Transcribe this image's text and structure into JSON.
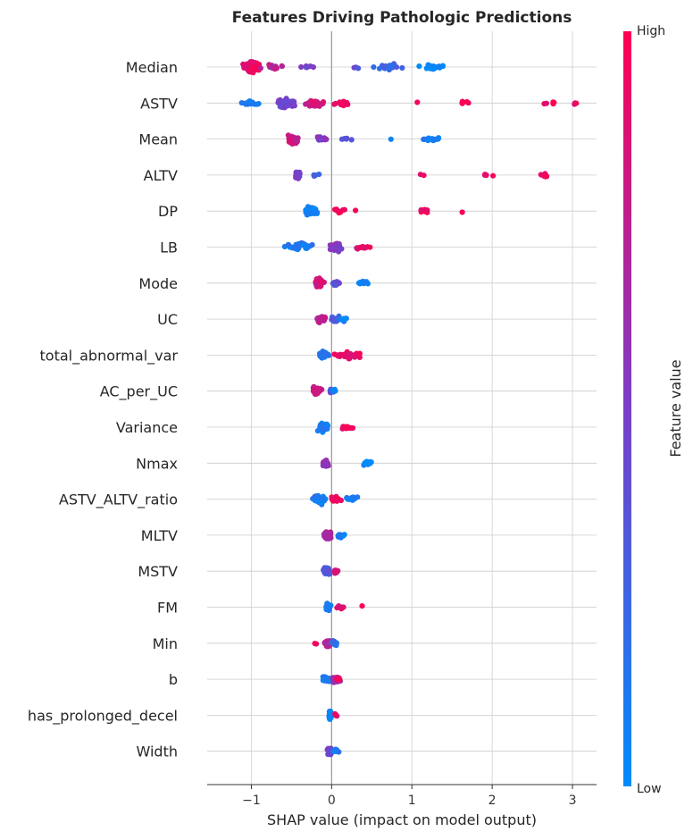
{
  "chart_data": {
    "type": "scatter",
    "subtype": "shap-beeswarm",
    "title": "Features Driving Pathologic Predictions",
    "xlabel": "SHAP value (impact on model output)",
    "xlim": [
      -1.55,
      3.3
    ],
    "xticks": [
      -1,
      0,
      1,
      2,
      3
    ],
    "colorbar": {
      "label": "Feature value",
      "high": "High",
      "low": "Low",
      "low_color": "#008bfb",
      "mid_color": "#7a3ec9",
      "high_color": "#ff0052"
    },
    "features": [
      {
        "name": "Median",
        "clusters": [
          {
            "c": -1.0,
            "w": 0.16,
            "n": 70,
            "v": 0.9
          },
          {
            "c": -0.7,
            "w": 0.2,
            "n": 18,
            "v": 0.72
          },
          {
            "c": -0.3,
            "w": 0.12,
            "n": 8,
            "v": 0.5
          },
          {
            "c": 0.7,
            "w": 0.25,
            "n": 25,
            "v": 0.25
          },
          {
            "c": 1.3,
            "w": 0.25,
            "n": 22,
            "v": 0.05
          },
          {
            "c": 0.3,
            "w": 0.1,
            "n": 3,
            "v": 0.35
          }
        ]
      },
      {
        "name": "ASTV",
        "clusters": [
          {
            "c": -1.0,
            "w": 0.3,
            "n": 14,
            "v": 0.1
          },
          {
            "c": -0.55,
            "w": 0.2,
            "n": 45,
            "v": 0.45
          },
          {
            "c": -0.2,
            "w": 0.2,
            "n": 30,
            "v": 0.8
          },
          {
            "c": 0.15,
            "w": 0.2,
            "n": 14,
            "v": 0.95
          },
          {
            "c": 1.65,
            "w": 0.1,
            "n": 5,
            "v": 0.95
          },
          {
            "c": 2.7,
            "w": 0.2,
            "n": 5,
            "v": 0.95
          },
          {
            "c": 3.05,
            "w": 0.05,
            "n": 3,
            "v": 0.95
          },
          {
            "c": 1.05,
            "w": 0.03,
            "n": 1,
            "v": 0.95
          }
        ]
      },
      {
        "name": "Mean",
        "clusters": [
          {
            "c": -0.5,
            "w": 0.12,
            "n": 40,
            "v": 0.8
          },
          {
            "c": -0.15,
            "w": 0.2,
            "n": 14,
            "v": 0.55
          },
          {
            "c": 0.2,
            "w": 0.15,
            "n": 5,
            "v": 0.3
          },
          {
            "c": 1.25,
            "w": 0.2,
            "n": 14,
            "v": 0.1
          },
          {
            "c": 0.73,
            "w": 0.02,
            "n": 1,
            "v": 0.1
          }
        ]
      },
      {
        "name": "ALTV",
        "clusters": [
          {
            "c": -0.42,
            "w": 0.05,
            "n": 30,
            "v": 0.45
          },
          {
            "c": -0.2,
            "w": 0.08,
            "n": 5,
            "v": 0.3
          },
          {
            "c": 1.1,
            "w": 0.15,
            "n": 2,
            "v": 0.95
          },
          {
            "c": 1.95,
            "w": 0.15,
            "n": 4,
            "v": 0.95
          },
          {
            "c": 2.65,
            "w": 0.12,
            "n": 6,
            "v": 0.95
          }
        ]
      },
      {
        "name": "DP",
        "clusters": [
          {
            "c": -0.25,
            "w": 0.12,
            "n": 45,
            "v": 0.05
          },
          {
            "c": 0.1,
            "w": 0.12,
            "n": 10,
            "v": 0.95
          },
          {
            "c": 1.15,
            "w": 0.1,
            "n": 10,
            "v": 0.95
          },
          {
            "c": 1.63,
            "w": 0.02,
            "n": 1,
            "v": 0.95
          },
          {
            "c": 0.28,
            "w": 0.03,
            "n": 1,
            "v": 0.95
          }
        ]
      },
      {
        "name": "LB",
        "clusters": [
          {
            "c": -0.4,
            "w": 0.3,
            "n": 30,
            "v": 0.12
          },
          {
            "c": 0.05,
            "w": 0.12,
            "n": 40,
            "v": 0.55
          },
          {
            "c": 0.4,
            "w": 0.15,
            "n": 12,
            "v": 0.9
          }
        ]
      },
      {
        "name": "Mode",
        "clusters": [
          {
            "c": -0.15,
            "w": 0.08,
            "n": 40,
            "v": 0.82
          },
          {
            "c": 0.05,
            "w": 0.1,
            "n": 14,
            "v": 0.4
          },
          {
            "c": 0.4,
            "w": 0.1,
            "n": 10,
            "v": 0.05
          }
        ]
      },
      {
        "name": "UC",
        "clusters": [
          {
            "c": -0.12,
            "w": 0.1,
            "n": 30,
            "v": 0.75
          },
          {
            "c": 0.05,
            "w": 0.08,
            "n": 18,
            "v": 0.3
          },
          {
            "c": 0.15,
            "w": 0.1,
            "n": 8,
            "v": 0.05
          }
        ]
      },
      {
        "name": "total_abnormal_var",
        "clusters": [
          {
            "c": -0.1,
            "w": 0.08,
            "n": 30,
            "v": 0.2
          },
          {
            "c": 0.2,
            "w": 0.25,
            "n": 30,
            "v": 0.9
          }
        ]
      },
      {
        "name": "AC_per_UC",
        "clusters": [
          {
            "c": -0.18,
            "w": 0.08,
            "n": 35,
            "v": 0.78
          },
          {
            "c": 0.0,
            "w": 0.05,
            "n": 10,
            "v": 0.4
          },
          {
            "c": 0.03,
            "w": 0.04,
            "n": 5,
            "v": 0.05
          }
        ]
      },
      {
        "name": "Variance",
        "clusters": [
          {
            "c": -0.1,
            "w": 0.1,
            "n": 45,
            "v": 0.08
          },
          {
            "c": 0.2,
            "w": 0.15,
            "n": 16,
            "v": 0.95
          }
        ]
      },
      {
        "name": "Nmax",
        "clusters": [
          {
            "c": -0.08,
            "w": 0.05,
            "n": 35,
            "v": 0.6
          },
          {
            "c": 0.45,
            "w": 0.12,
            "n": 15,
            "v": 0.05
          }
        ]
      },
      {
        "name": "ASTV_ALTV_ratio",
        "clusters": [
          {
            "c": -0.15,
            "w": 0.15,
            "n": 35,
            "v": 0.1
          },
          {
            "c": 0.05,
            "w": 0.1,
            "n": 25,
            "v": 0.95
          },
          {
            "c": 0.25,
            "w": 0.12,
            "n": 12,
            "v": 0.08
          }
        ]
      },
      {
        "name": "MLTV",
        "clusters": [
          {
            "c": -0.05,
            "w": 0.08,
            "n": 35,
            "v": 0.7
          },
          {
            "c": 0.12,
            "w": 0.08,
            "n": 10,
            "v": 0.1
          }
        ]
      },
      {
        "name": "MSTV",
        "clusters": [
          {
            "c": -0.05,
            "w": 0.08,
            "n": 35,
            "v": 0.3
          },
          {
            "c": 0.05,
            "w": 0.05,
            "n": 12,
            "v": 0.85
          }
        ]
      },
      {
        "name": "FM",
        "clusters": [
          {
            "c": -0.05,
            "w": 0.05,
            "n": 35,
            "v": 0.12
          },
          {
            "c": 0.1,
            "w": 0.08,
            "n": 8,
            "v": 0.9
          },
          {
            "c": 0.38,
            "w": 0.02,
            "n": 1,
            "v": 0.95
          }
        ]
      },
      {
        "name": "Min",
        "clusters": [
          {
            "c": -0.05,
            "w": 0.08,
            "n": 30,
            "v": 0.75
          },
          {
            "c": 0.05,
            "w": 0.1,
            "n": 15,
            "v": 0.15
          },
          {
            "c": -0.2,
            "w": 0.03,
            "n": 2,
            "v": 0.95
          }
        ]
      },
      {
        "name": "b",
        "clusters": [
          {
            "c": -0.05,
            "w": 0.08,
            "n": 25,
            "v": 0.1
          },
          {
            "c": 0.05,
            "w": 0.08,
            "n": 20,
            "v": 0.65
          },
          {
            "c": 0.1,
            "w": 0.05,
            "n": 6,
            "v": 0.95
          }
        ]
      },
      {
        "name": "has_prolonged_decel",
        "clusters": [
          {
            "c": -0.02,
            "w": 0.02,
            "n": 50,
            "v": 0.05
          },
          {
            "c": 0.05,
            "w": 0.04,
            "n": 6,
            "v": 0.95
          }
        ]
      },
      {
        "name": "Width",
        "clusters": [
          {
            "c": -0.02,
            "w": 0.04,
            "n": 40,
            "v": 0.45
          },
          {
            "c": 0.05,
            "w": 0.06,
            "n": 10,
            "v": 0.1
          }
        ]
      }
    ]
  }
}
